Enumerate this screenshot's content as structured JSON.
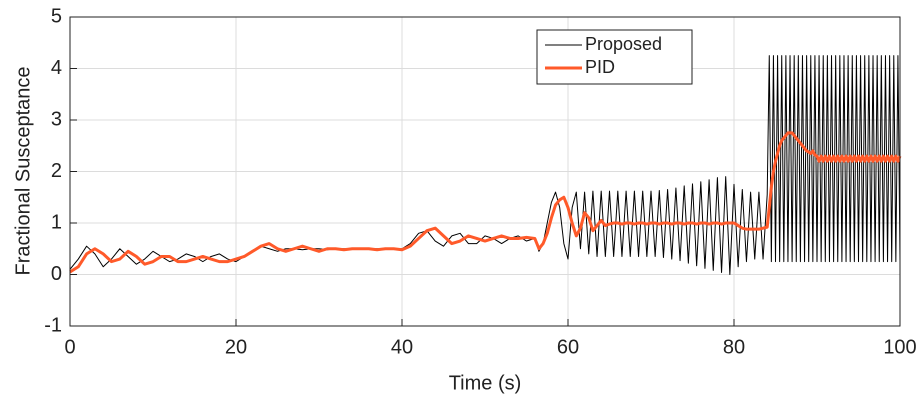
{
  "chart_data": {
    "type": "line",
    "xlabel": "Time (s)",
    "ylabel": "Fractional Susceptance",
    "x": [
      0,
      1,
      2,
      3,
      4,
      5,
      6,
      7,
      8,
      9,
      10,
      11,
      12,
      13,
      14,
      15,
      16,
      17,
      18,
      19,
      20,
      21,
      22,
      23,
      24,
      25,
      26,
      27,
      28,
      29,
      30,
      31,
      32,
      33,
      34,
      35,
      36,
      37,
      38,
      39,
      40,
      41,
      42,
      43,
      44,
      45,
      46,
      47,
      48,
      49,
      50,
      51,
      52,
      53,
      54,
      55,
      56,
      56.5,
      57,
      57.5,
      58,
      58.5,
      59,
      59.5,
      60,
      60.5,
      61,
      61.5,
      62,
      62.5,
      63,
      63.5,
      64,
      64.5,
      65,
      65.5,
      66,
      66.5,
      67,
      67.5,
      68,
      68.5,
      69,
      69.5,
      70,
      70.5,
      71,
      71.5,
      72,
      72.5,
      73,
      73.5,
      74,
      74.5,
      75,
      75.5,
      76,
      76.5,
      77,
      77.5,
      78,
      78.5,
      79,
      79.5,
      80,
      80.5,
      81,
      81.5,
      82,
      82.5,
      83,
      83.5,
      84,
      84.25,
      84.5,
      84.75,
      85,
      85.25,
      85.5,
      85.75,
      86,
      86.25,
      86.5,
      86.75,
      87,
      87.25,
      87.5,
      87.75,
      88,
      88.25,
      88.5,
      88.75,
      89,
      89.25,
      89.5,
      89.75,
      90,
      90.25,
      90.5,
      90.75,
      91,
      91.25,
      91.5,
      91.75,
      92,
      92.25,
      92.5,
      92.75,
      93,
      93.25,
      93.5,
      93.75,
      94,
      94.25,
      94.5,
      94.75,
      95,
      95.25,
      95.5,
      95.75,
      96,
      96.25,
      96.5,
      96.75,
      97,
      97.25,
      97.5,
      97.75,
      98,
      98.25,
      98.5,
      98.75,
      99,
      99.25,
      99.5,
      99.75,
      100
    ],
    "series": [
      {
        "name": "Proposed",
        "color": "#000000",
        "width": 1,
        "values": [
          0.1,
          0.3,
          0.55,
          0.4,
          0.15,
          0.3,
          0.5,
          0.35,
          0.2,
          0.3,
          0.45,
          0.35,
          0.25,
          0.3,
          0.4,
          0.35,
          0.25,
          0.35,
          0.4,
          0.3,
          0.25,
          0.35,
          0.45,
          0.55,
          0.5,
          0.45,
          0.5,
          0.5,
          0.48,
          0.5,
          0.5,
          0.48,
          0.5,
          0.5,
          0.5,
          0.5,
          0.5,
          0.5,
          0.5,
          0.5,
          0.5,
          0.6,
          0.8,
          0.85,
          0.65,
          0.55,
          0.75,
          0.8,
          0.6,
          0.6,
          0.75,
          0.7,
          0.6,
          0.7,
          0.75,
          0.65,
          0.7,
          0.45,
          0.6,
          1.0,
          1.4,
          1.6,
          1.3,
          0.6,
          0.3,
          1.3,
          1.6,
          0.5,
          1.6,
          0.4,
          1.62,
          0.35,
          1.62,
          0.35,
          1.62,
          0.35,
          1.62,
          0.35,
          1.62,
          0.35,
          1.62,
          0.35,
          1.62,
          0.35,
          1.62,
          0.35,
          1.63,
          0.33,
          1.65,
          0.3,
          1.68,
          0.27,
          1.72,
          0.22,
          1.76,
          0.17,
          1.8,
          0.12,
          1.84,
          0.08,
          1.88,
          0.04,
          1.9,
          0,
          1.75,
          0.15,
          1.65,
          0.25,
          1.6,
          0.3,
          1.6,
          0.3,
          1.55,
          4.25,
          0.25,
          4.25,
          0.25,
          4.25,
          0.25,
          4.25,
          0.25,
          4.25,
          0.25,
          4.25,
          0.25,
          4.25,
          0.25,
          4.25,
          0.25,
          4.25,
          0.25,
          4.25,
          0.25,
          4.25,
          0.25,
          4.25,
          0.25,
          4.25,
          0.25,
          4.25,
          0.25,
          4.25,
          0.25,
          4.25,
          0.25,
          4.25,
          0.25,
          4.25,
          0.25,
          4.25,
          0.25,
          4.25,
          0.25,
          4.25,
          0.25,
          4.25,
          0.25,
          4.25,
          0.25,
          4.25,
          0.25,
          4.25,
          0.25,
          4.25,
          0.25,
          4.25,
          0.25,
          4.25,
          0.25,
          4.25,
          0.25,
          4.25,
          0.25,
          4.25,
          0.25,
          4.25,
          0.25
        ]
      },
      {
        "name": "PID",
        "color": "#ff5a2a",
        "width": 3,
        "values": [
          0.05,
          0.15,
          0.4,
          0.5,
          0.4,
          0.25,
          0.3,
          0.45,
          0.35,
          0.2,
          0.25,
          0.35,
          0.35,
          0.25,
          0.25,
          0.3,
          0.35,
          0.3,
          0.25,
          0.25,
          0.3,
          0.35,
          0.45,
          0.55,
          0.6,
          0.5,
          0.45,
          0.5,
          0.55,
          0.5,
          0.45,
          0.5,
          0.5,
          0.48,
          0.5,
          0.5,
          0.5,
          0.48,
          0.5,
          0.5,
          0.48,
          0.55,
          0.7,
          0.85,
          0.9,
          0.75,
          0.6,
          0.65,
          0.75,
          0.7,
          0.65,
          0.7,
          0.75,
          0.7,
          0.7,
          0.72,
          0.7,
          0.5,
          0.6,
          0.8,
          1.1,
          1.35,
          1.45,
          1.5,
          1.3,
          1.0,
          0.75,
          0.9,
          1.2,
          1.1,
          0.85,
          0.95,
          1.05,
          0.95,
          0.98,
          1,
          1,
          0.98,
          1,
          1,
          0.98,
          1,
          1,
          0.98,
          1,
          1,
          0.98,
          1,
          1,
          0.98,
          1,
          1,
          0.98,
          1,
          1,
          0.98,
          1,
          1,
          0.98,
          1,
          1,
          0.98,
          1,
          1,
          1,
          0.95,
          0.9,
          0.88,
          0.88,
          0.88,
          0.88,
          0.9,
          0.92,
          1.3,
          1.7,
          2.0,
          2.2,
          2.35,
          2.5,
          2.6,
          2.65,
          2.7,
          2.75,
          2.75,
          2.75,
          2.7,
          2.65,
          2.6,
          2.55,
          2.5,
          2.45,
          2.4,
          2.38,
          2.35,
          2.4,
          2.32,
          2.3,
          2.2,
          2.3,
          2.2,
          2.3,
          2.2,
          2.3,
          2.2,
          2.3,
          2.2,
          2.3,
          2.2,
          2.3,
          2.2,
          2.3,
          2.2,
          2.3,
          2.2,
          2.3,
          2.2,
          2.3,
          2.2,
          2.3,
          2.2,
          2.3,
          2.2,
          2.3,
          2.2,
          2.3,
          2.2,
          2.3,
          2.2,
          2.3,
          2.2,
          2.3,
          2.2,
          2.3,
          2.2,
          2.3,
          2.2,
          2.3
        ]
      }
    ],
    "xlim": [
      0,
      100
    ],
    "xticks": [
      0,
      20,
      40,
      60,
      80,
      100
    ],
    "ylim": [
      -1,
      5
    ],
    "yticks": [
      -1,
      0,
      1,
      2,
      3,
      4,
      5
    ],
    "grid": true,
    "legend": "top-right"
  }
}
